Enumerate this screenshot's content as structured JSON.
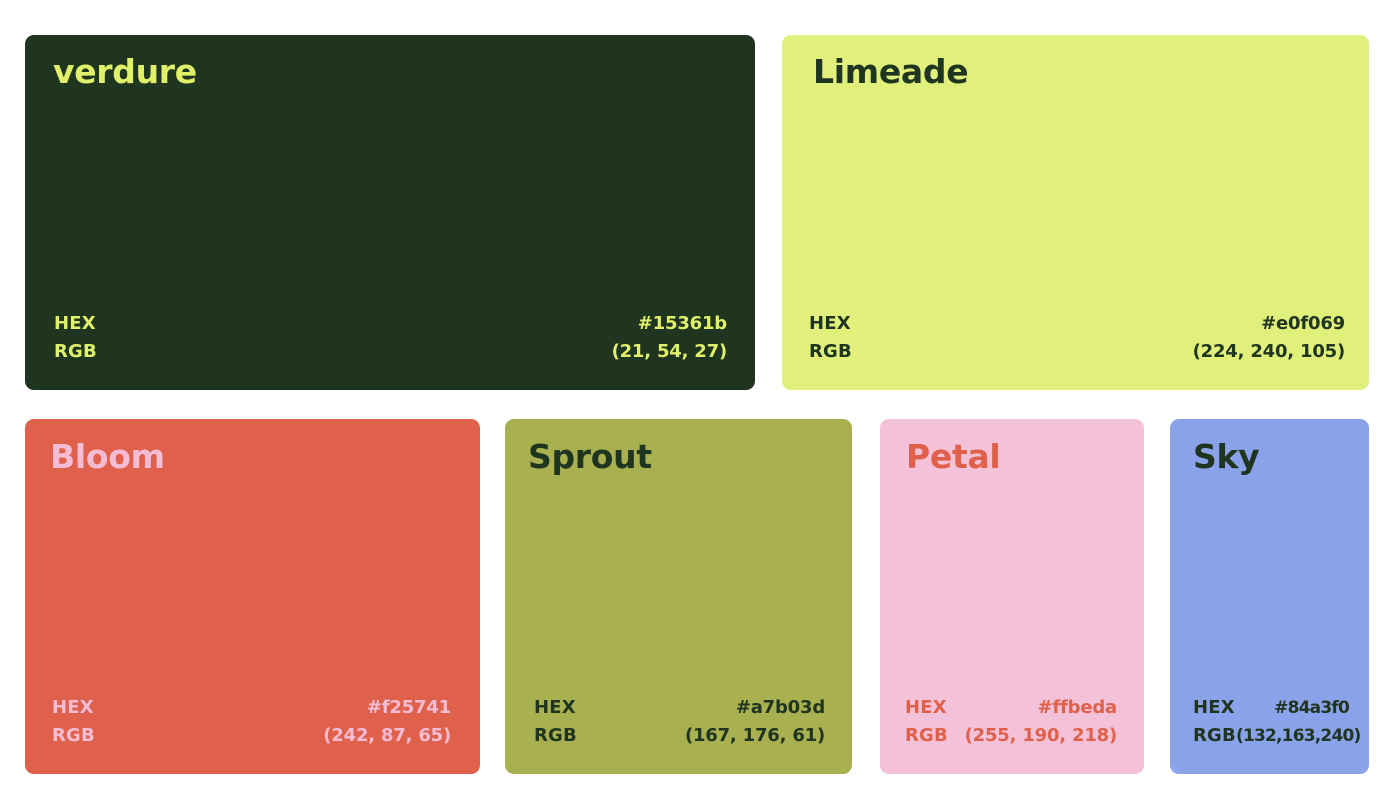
{
  "labels": {
    "hex": "HEX",
    "rgb": "RGB"
  },
  "swatches": [
    {
      "name": "verdure",
      "hex": "#15361b",
      "rgb": "(21, 54, 27)",
      "background": "#1f3520",
      "text_color": "#e0f069"
    },
    {
      "name": "Limeade",
      "hex": "#e0f069",
      "rgb": "(224, 240, 105)",
      "background": "#e0f07b",
      "text_color": "#1f3520"
    },
    {
      "name": "Bloom",
      "hex": "#f25741",
      "rgb": "(242, 87, 65)",
      "background": "#e0614b",
      "text_color": "#f4bdd5"
    },
    {
      "name": "Sprout",
      "hex": "#a7b03d",
      "rgb": "(167, 176, 61)",
      "background": "#a9b050",
      "text_color": "#1f3520"
    },
    {
      "name": "Petal",
      "hex": "#ffbeda",
      "rgb": "(255, 190, 218)",
      "background": "#f4c2d8",
      "text_color": "#e0614b"
    },
    {
      "name": "Sky",
      "hex": "#84a3f0",
      "rgb": "(132,163,240)",
      "background": "#8aa2ea",
      "text_color": "#1f3520"
    }
  ]
}
